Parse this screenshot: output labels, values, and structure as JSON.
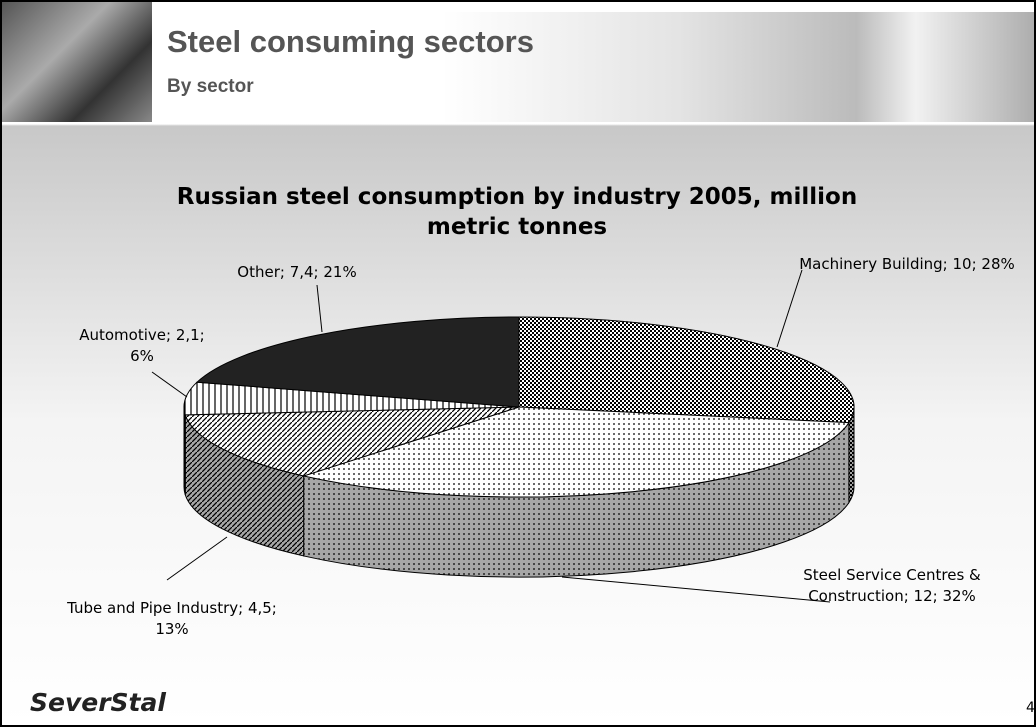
{
  "header": {
    "title": "Steel consuming sectors",
    "subtitle": "By sector"
  },
  "chart_data": {
    "type": "pie3d",
    "title": "Russian steel consumption by industry 2005, million metric tonnes",
    "values": [
      10,
      12,
      4.5,
      2.1,
      7.4
    ],
    "value_labels": [
      "Machinery Building; 10; 28%",
      "Steel Service Centres & Construction; 12; 32%",
      "Tube and Pipe Industry; 4,5; 13%",
      "Automotive; 2,1; 6%",
      "Other; 7,4; 21%"
    ]
  },
  "footer": {
    "logo": "SeverStal",
    "page_number": "4"
  }
}
